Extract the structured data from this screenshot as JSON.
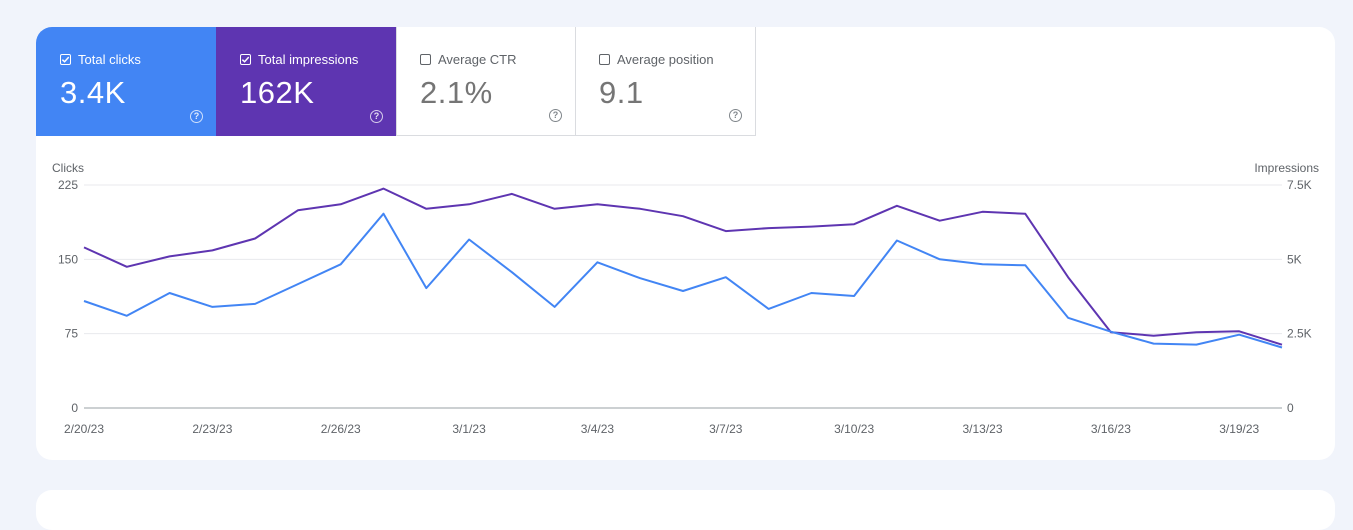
{
  "metrics": [
    {
      "label": "Total clicks",
      "value": "3.4K",
      "checked": true,
      "color": "#4285f4"
    },
    {
      "label": "Total impressions",
      "value": "162K",
      "checked": true,
      "color": "#5e35b1"
    },
    {
      "label": "Average CTR",
      "value": "2.1%",
      "checked": false
    },
    {
      "label": "Average position",
      "value": "9.1",
      "checked": false
    }
  ],
  "help_icon": "?",
  "chart_data": {
    "type": "line",
    "left_axis_label": "Clicks",
    "right_axis_label": "Impressions",
    "left_ylim": [
      0,
      225
    ],
    "right_ylim": [
      0,
      7500
    ],
    "left_ticks": [
      "0",
      "75",
      "150",
      "225"
    ],
    "right_ticks": [
      "0",
      "2.5K",
      "5K",
      "7.5K"
    ],
    "x_tick_labels": [
      "2/20/23",
      "2/23/23",
      "2/26/23",
      "3/1/23",
      "3/4/23",
      "3/7/23",
      "3/10/23",
      "3/13/23",
      "3/16/23",
      "3/19/23"
    ],
    "x": [
      "2/20/23",
      "2/21/23",
      "2/22/23",
      "2/23/23",
      "2/24/23",
      "2/25/23",
      "2/26/23",
      "2/27/23",
      "2/28/23",
      "3/1/23",
      "3/2/23",
      "3/3/23",
      "3/4/23",
      "3/5/23",
      "3/6/23",
      "3/7/23",
      "3/8/23",
      "3/9/23",
      "3/10/23",
      "3/11/23",
      "3/12/23",
      "3/13/23",
      "3/14/23",
      "3/15/23",
      "3/16/23",
      "3/17/23",
      "3/18/23",
      "3/19/23",
      "3/20/23"
    ],
    "grid": true,
    "series": [
      {
        "name": "Total clicks",
        "axis": "left",
        "color": "#4285f4",
        "values": [
          108,
          93,
          116,
          102,
          105,
          125,
          145,
          196,
          121,
          170,
          137,
          102,
          147,
          131,
          118,
          132,
          100,
          116,
          113,
          169,
          150,
          145,
          144,
          91,
          77,
          65,
          64,
          74,
          61
        ]
      },
      {
        "name": "Total impressions",
        "axis": "right",
        "color": "#5e35b1",
        "values": [
          5400,
          4750,
          5100,
          5300,
          5700,
          6650,
          6850,
          7380,
          6700,
          6850,
          7200,
          6700,
          6850,
          6700,
          6450,
          5950,
          6050,
          6100,
          6180,
          6800,
          6300,
          6600,
          6530,
          4400,
          2550,
          2430,
          2550,
          2580,
          2130
        ]
      }
    ]
  }
}
